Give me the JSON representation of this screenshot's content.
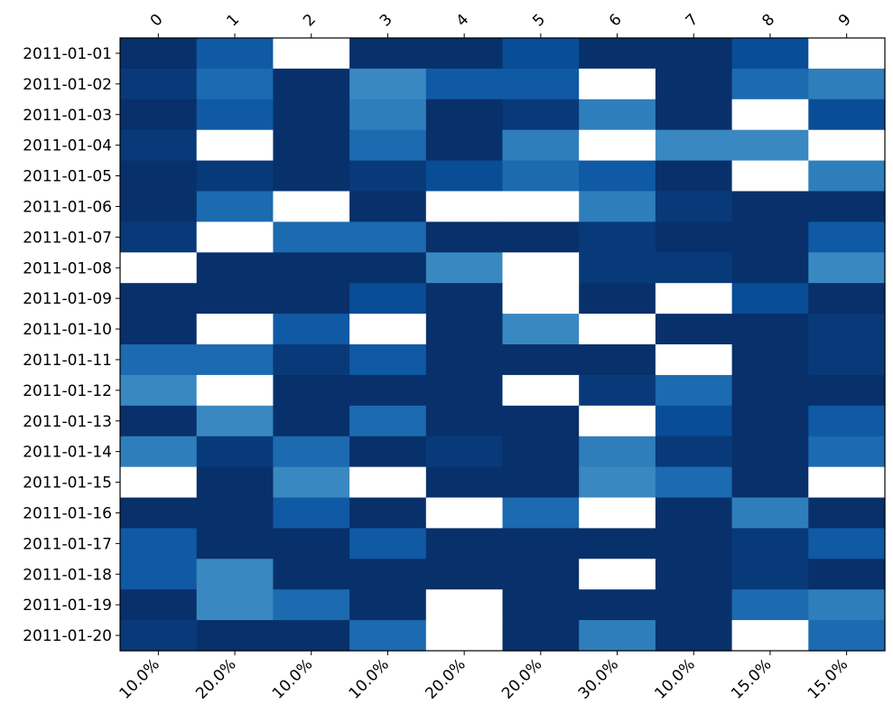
{
  "chart_data": {
    "type": "heatmap",
    "colormap": "Blues",
    "title": "",
    "xlabel": "",
    "ylabel": "",
    "missing_color": "#ffffff",
    "color_levels": {
      "0": "#08306b",
      "1": "#083a7a",
      "2": "#084d96",
      "3": "#1059a5",
      "4": "#1c6ab0",
      "5": "#2f7ebc",
      "6": "#3a88c1"
    },
    "rows": [
      "2011-01-01",
      "2011-01-02",
      "2011-01-03",
      "2011-01-04",
      "2011-01-05",
      "2011-01-06",
      "2011-01-07",
      "2011-01-08",
      "2011-01-09",
      "2011-01-10",
      "2011-01-11",
      "2011-01-12",
      "2011-01-13",
      "2011-01-14",
      "2011-01-15",
      "2011-01-16",
      "2011-01-17",
      "2011-01-18",
      "2011-01-19",
      "2011-01-20"
    ],
    "columns_top": [
      "0",
      "1",
      "2",
      "3",
      "4",
      "5",
      "6",
      "7",
      "8",
      "9"
    ],
    "columns_bottom": [
      "10.0%",
      "20.0%",
      "10.0%",
      "10.0%",
      "20.0%",
      "20.0%",
      "30.0%",
      "10.0%",
      "15.0%",
      "15.0%"
    ],
    "values": [
      [
        0,
        3,
        null,
        0,
        0,
        2,
        0,
        0,
        2,
        null
      ],
      [
        1,
        4,
        0,
        6,
        3,
        3,
        null,
        0,
        4,
        5
      ],
      [
        0,
        3,
        0,
        5,
        0,
        1,
        5,
        0,
        null,
        2
      ],
      [
        1,
        null,
        0,
        4,
        0,
        5,
        null,
        6,
        6,
        null
      ],
      [
        0,
        1,
        0,
        1,
        2,
        4,
        3,
        0,
        null,
        5
      ],
      [
        0,
        4,
        null,
        0,
        null,
        null,
        5,
        1,
        0,
        0
      ],
      [
        1,
        null,
        4,
        4,
        0,
        0,
        1,
        0,
        0,
        3
      ],
      [
        null,
        0,
        0,
        0,
        6,
        null,
        1,
        1,
        0,
        6
      ],
      [
        0,
        0,
        0,
        2,
        0,
        null,
        0,
        null,
        2,
        0
      ],
      [
        0,
        null,
        3,
        null,
        0,
        6,
        null,
        0,
        0,
        1
      ],
      [
        4,
        4,
        1,
        3,
        0,
        0,
        0,
        null,
        0,
        1
      ],
      [
        6,
        null,
        0,
        0,
        0,
        null,
        1,
        4,
        0,
        0
      ],
      [
        0,
        6,
        0,
        4,
        0,
        0,
        null,
        2,
        0,
        3
      ],
      [
        5,
        1,
        4,
        0,
        1,
        0,
        5,
        1,
        0,
        4
      ],
      [
        null,
        0,
        6,
        null,
        0,
        0,
        6,
        4,
        0,
        null
      ],
      [
        0,
        0,
        3,
        0,
        null,
        4,
        null,
        0,
        5,
        0
      ],
      [
        3,
        0,
        0,
        3,
        0,
        0,
        0,
        0,
        1,
        3
      ],
      [
        3,
        6,
        0,
        0,
        0,
        0,
        null,
        0,
        1,
        0
      ],
      [
        0,
        6,
        4,
        0,
        null,
        0,
        0,
        0,
        4,
        5
      ],
      [
        1,
        0,
        0,
        4,
        null,
        0,
        5,
        0,
        null,
        4
      ]
    ]
  }
}
